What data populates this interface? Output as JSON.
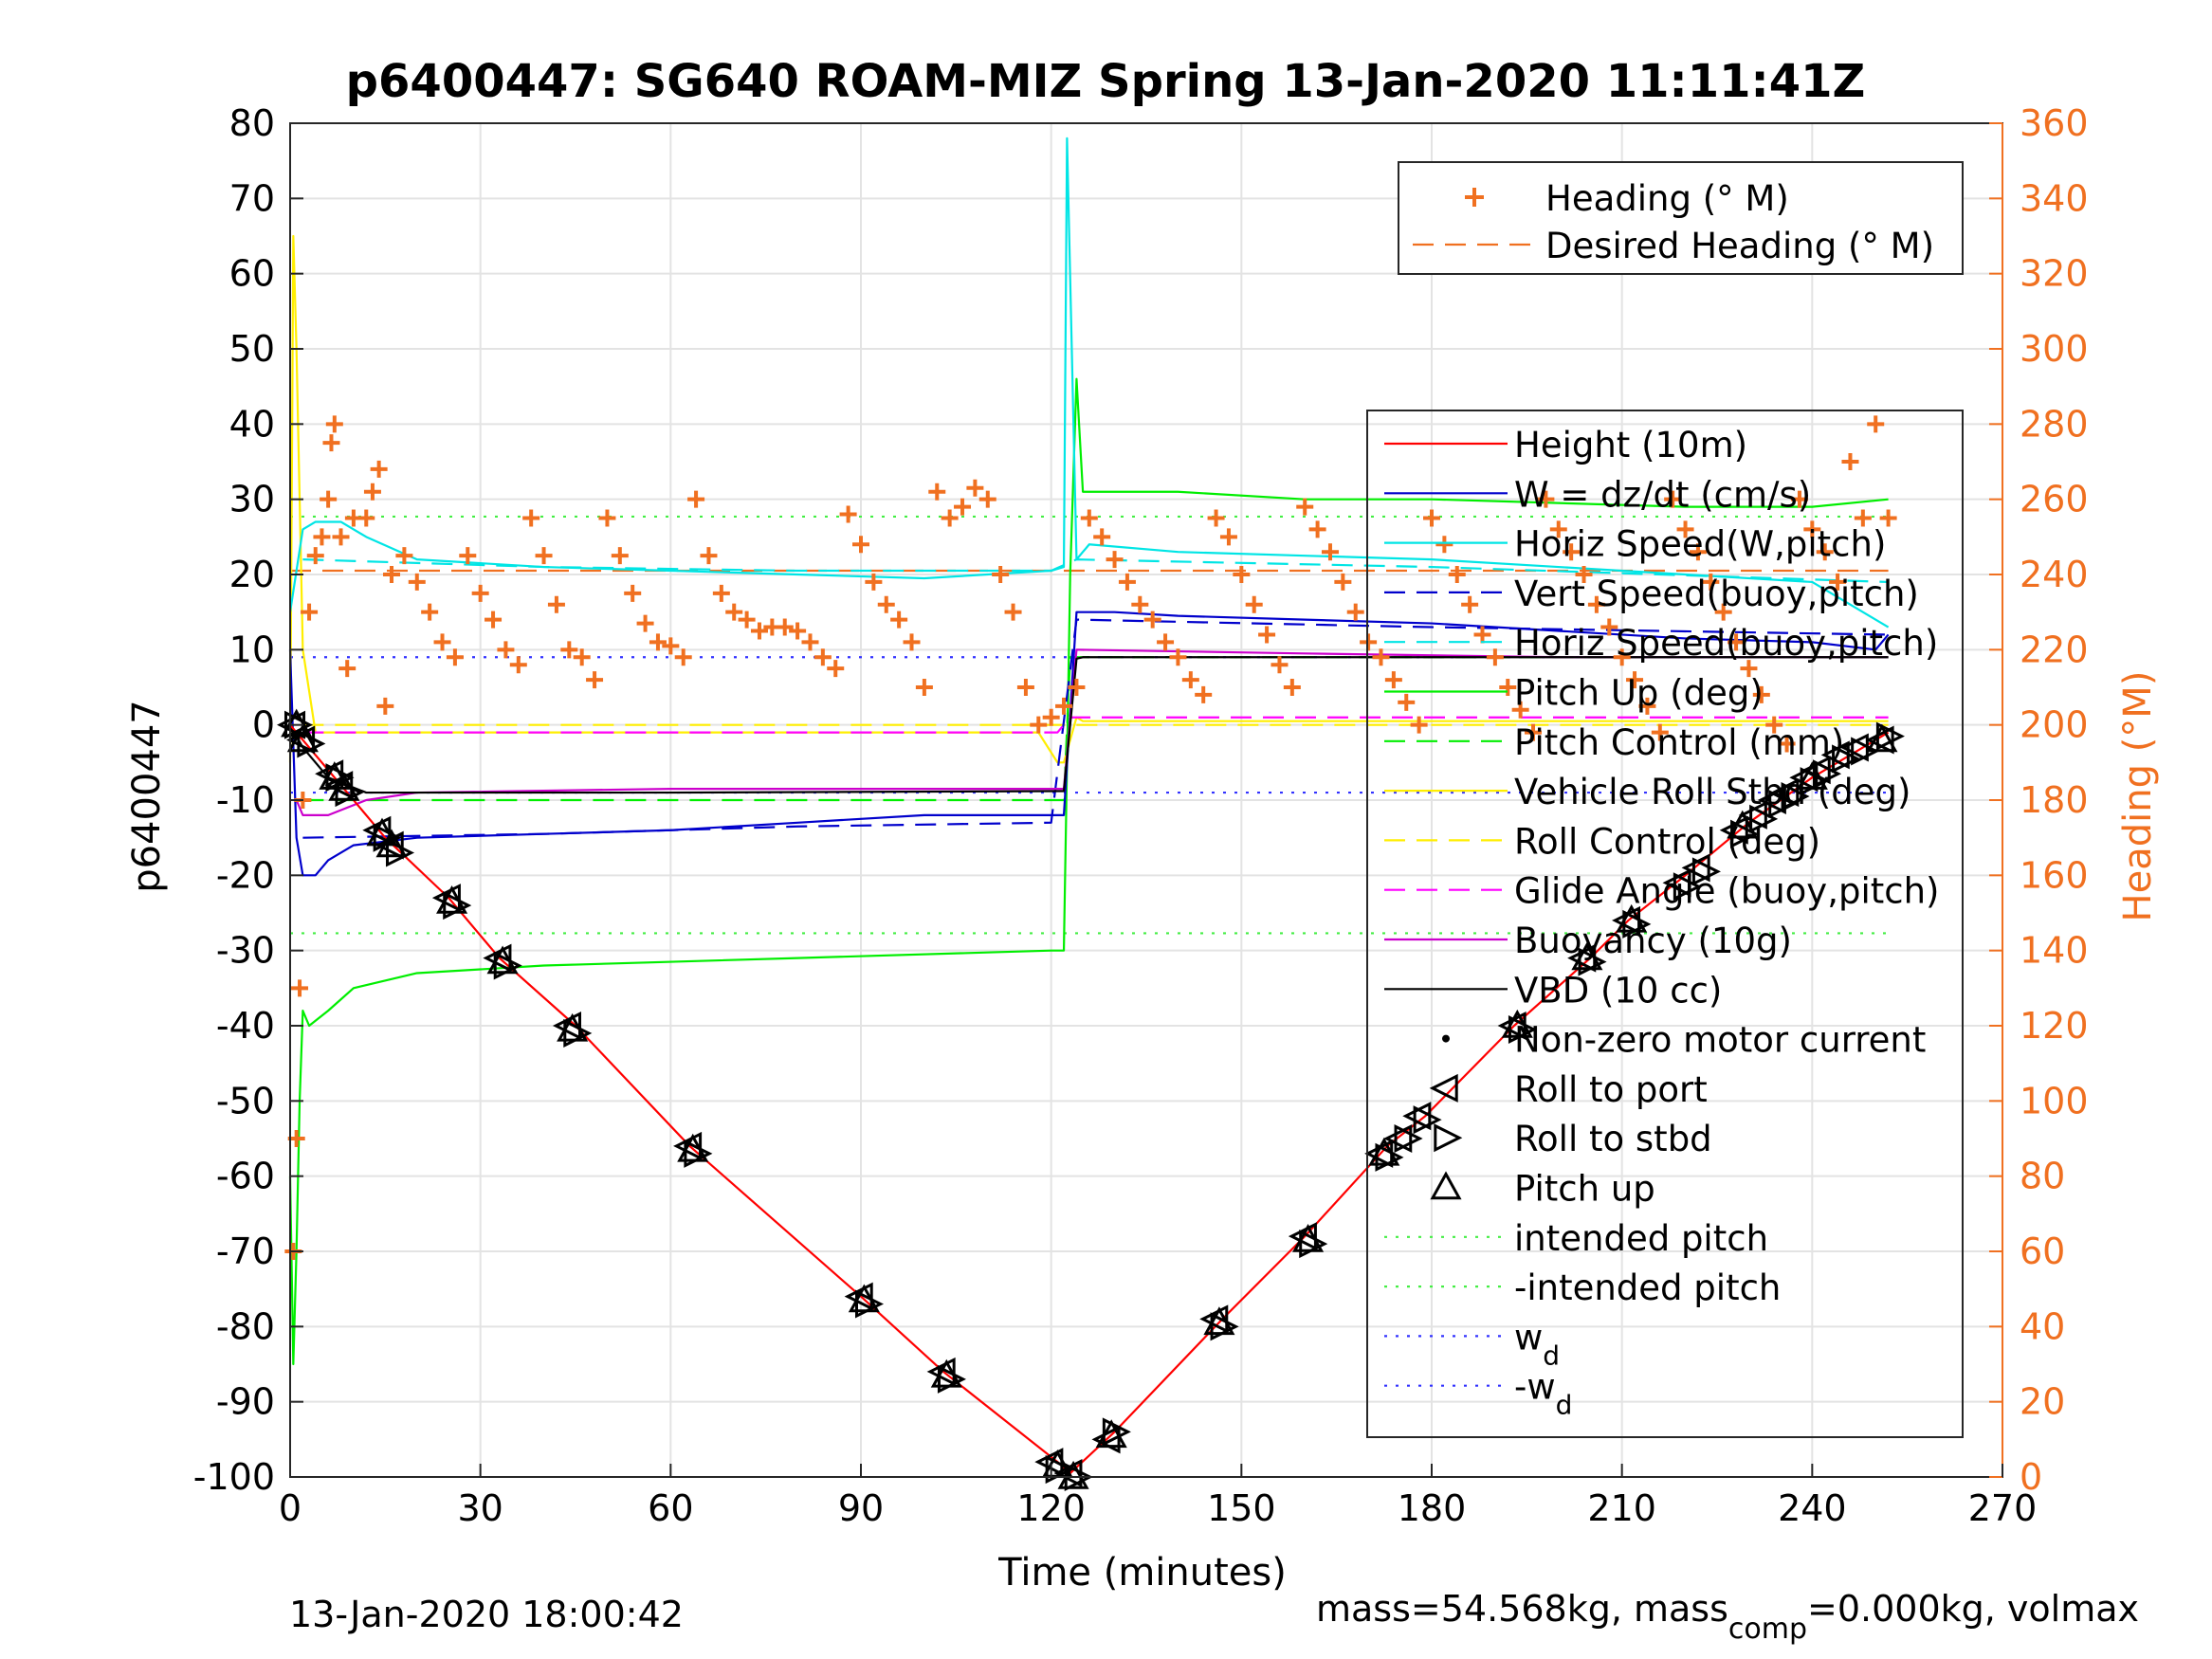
{
  "chart_data": {
    "type": "line",
    "title": "p6400447: SG640 ROAM-MIZ Spring 13-Jan-2020 11:11:41Z",
    "xlabel": "Time (minutes)",
    "ylabel": "p6400447",
    "ylabel_right": "Heading (°M)",
    "xlim": [
      0,
      270
    ],
    "ylim": [
      -100,
      80
    ],
    "ylim_right": [
      0,
      360
    ],
    "x_ticks": [
      0,
      30,
      60,
      90,
      120,
      150,
      180,
      210,
      240,
      270
    ],
    "y_ticks": [
      80,
      70,
      60,
      50,
      40,
      30,
      20,
      10,
      0,
      -10,
      -20,
      -30,
      -40,
      -50,
      -60,
      -70,
      -80,
      -90,
      -100
    ],
    "y_ticks_right": [
      360,
      340,
      320,
      300,
      280,
      260,
      240,
      220,
      200,
      180,
      160,
      140,
      120,
      100,
      80,
      60,
      40,
      20,
      0
    ],
    "grid": true,
    "footer_left": "13-Jan-2020 18:00:42",
    "footer_right": "mass=54.568kg, mass",
    "footer_right_sub": "comp",
    "footer_right_tail": "=0.000kg, volmax",
    "legend_top": [
      {
        "label": "Heading (° M)",
        "color": "#f07020",
        "style": "plus"
      },
      {
        "label": "Desired Heading (° M)",
        "color": "#f07020",
        "style": "dash"
      }
    ],
    "legend_main": [
      {
        "label": "Height (10m)",
        "color": "#ff0000",
        "style": "solid"
      },
      {
        "label": "W = dz/dt (cm/s)",
        "color": "#0000cc",
        "style": "solid"
      },
      {
        "label": "Horiz Speed(W,pitch)",
        "color": "#00e5e5",
        "style": "solid"
      },
      {
        "label": "Vert Speed(buoy,pitch)",
        "color": "#0000cc",
        "style": "dash"
      },
      {
        "label": "Horiz Speed(buoy,pitch)",
        "color": "#00e5e5",
        "style": "dash"
      },
      {
        "label": "Pitch Up (deg)",
        "color": "#00ee00",
        "style": "solid"
      },
      {
        "label": "Pitch Control (mm)",
        "color": "#00ee00",
        "style": "dash"
      },
      {
        "label": "Vehicle Roll Stbd (deg)",
        "color": "#ffee00",
        "style": "solid"
      },
      {
        "label": "Roll Control (deg)",
        "color": "#ffee00",
        "style": "dash"
      },
      {
        "label": "Glide Angle (buoy,pitch)",
        "color": "#ff00ff",
        "style": "dash"
      },
      {
        "label": "Buoyancy (10g)",
        "color": "#cc00cc",
        "style": "solid"
      },
      {
        "label": "VBD (10 cc)",
        "color": "#000000",
        "style": "solid"
      },
      {
        "label": "Non-zero motor current",
        "color": "#000000",
        "style": "dot"
      },
      {
        "label": "Roll to port",
        "color": "#000000",
        "style": "tri-left"
      },
      {
        "label": "Roll to stbd",
        "color": "#000000",
        "style": "tri-right"
      },
      {
        "label": "Pitch up",
        "color": "#000000",
        "style": "tri-up"
      },
      {
        "label": "intended pitch",
        "color": "#44ee44",
        "style": "dotted"
      },
      {
        "label": "-intended pitch",
        "color": "#44ee44",
        "style": "dotted"
      },
      {
        "label": "w",
        "sub": "d",
        "color": "#3333ff",
        "style": "dotted"
      },
      {
        "label": "-w",
        "sub": "d",
        "color": "#3333ff",
        "style": "dotted"
      }
    ],
    "series": [
      {
        "name": "Height (10m)",
        "color": "#ff0000",
        "x": [
          0,
          2,
          8,
          15,
          25,
          33,
          45,
          63,
          90,
          103,
          121,
          123,
          130,
          147,
          160,
          173,
          179,
          193,
          205,
          211,
          220,
          230,
          240,
          246,
          252
        ],
        "y": [
          0,
          -2,
          -8,
          -15,
          -23,
          -31,
          -40,
          -56,
          -76,
          -86,
          -98,
          -99.5,
          -94,
          -79,
          -68,
          -56,
          -52,
          -40,
          -31,
          -26,
          -20,
          -13,
          -7,
          -4,
          -1
        ]
      },
      {
        "name": "W = dz/dt (cm/s)",
        "color": "#0000cc",
        "x": [
          0,
          1,
          2,
          4,
          6,
          10,
          20,
          40,
          60,
          80,
          100,
          120,
          122,
          124,
          130,
          140,
          160,
          180,
          200,
          220,
          240,
          250,
          252
        ],
        "y": [
          10,
          -15,
          -20,
          -20,
          -18,
          -16,
          -15,
          -14.5,
          -14,
          -13,
          -12,
          -12,
          -12,
          15,
          15,
          14.5,
          14,
          13.5,
          12.5,
          11.5,
          11,
          10,
          12
        ]
      },
      {
        "name": "Horiz Speed(W,pitch)",
        "color": "#00e5e5",
        "x": [
          0,
          2,
          4,
          8,
          12,
          20,
          40,
          60,
          80,
          100,
          120,
          122,
          122.5,
          124,
          126,
          140,
          160,
          180,
          200,
          220,
          240,
          252
        ],
        "y": [
          15,
          26,
          27,
          27,
          25,
          22,
          21,
          20.5,
          20,
          19.5,
          20.5,
          21,
          78,
          22,
          24,
          23,
          22.5,
          22,
          21,
          20,
          19,
          13
        ]
      },
      {
        "name": "Vert Speed(buoy,pitch)",
        "color": "#0000cc",
        "x": [
          2,
          40,
          80,
          120,
          124,
          180,
          252
        ],
        "y": [
          -15,
          -14.5,
          -13.5,
          -13,
          14,
          13,
          12
        ]
      },
      {
        "name": "Horiz Speed(buoy,pitch)",
        "color": "#00e5e5",
        "x": [
          2,
          40,
          80,
          120,
          124,
          180,
          252
        ],
        "y": [
          22,
          21,
          20.5,
          20.5,
          22,
          21,
          19
        ]
      },
      {
        "name": "Pitch Up (deg)",
        "color": "#00ee00",
        "x": [
          0,
          0.5,
          1,
          1.5,
          2,
          3,
          6,
          10,
          20,
          40,
          80,
          120,
          122,
          122.5,
          123,
          124,
          125,
          140,
          160,
          180,
          200,
          220,
          240,
          252
        ],
        "y": [
          -60,
          -85,
          -70,
          -50,
          -38,
          -40,
          -38,
          -35,
          -33,
          -32,
          -31,
          -30,
          -30,
          -5,
          20,
          46,
          31,
          31,
          30,
          30,
          29.5,
          29,
          29,
          30
        ]
      },
      {
        "name": "Pitch Control (mm)",
        "color": "#00ee00",
        "x": [
          2,
          122,
          123,
          252
        ],
        "y": [
          -10,
          -10,
          9,
          9
        ]
      },
      {
        "name": "Vehicle Roll Stbd (deg)",
        "color": "#ffee00",
        "x": [
          0,
          0.5,
          1,
          2,
          4,
          10,
          25,
          50,
          80,
          100,
          118,
          121,
          122,
          124,
          125,
          150,
          180,
          200,
          230,
          252
        ],
        "y": [
          -5,
          65,
          50,
          10,
          -1,
          -1,
          -1,
          -1,
          -1,
          -1,
          -1,
          -5,
          -5,
          1,
          0.5,
          0.5,
          0.5,
          0.5,
          0.5,
          0.5
        ]
      },
      {
        "name": "Roll Control (deg)",
        "color": "#ffee00",
        "x": [
          2,
          122,
          124,
          252
        ],
        "y": [
          0,
          0,
          0,
          0
        ]
      },
      {
        "name": "Glide Angle (buoy,pitch)",
        "color": "#ff00ff",
        "x": [
          2,
          121,
          123,
          252
        ],
        "y": [
          -1,
          -1,
          1,
          1
        ]
      },
      {
        "name": "Buoyancy (10g)",
        "color": "#cc00cc",
        "x": [
          1,
          2,
          6,
          12,
          20,
          60,
          121,
          122,
          124,
          160,
          200,
          252
        ],
        "y": [
          -10,
          -12,
          -12,
          -10,
          -9,
          -8.5,
          -8.5,
          -8.5,
          10,
          9.5,
          9,
          9
        ]
      },
      {
        "name": "VBD (10 cc)",
        "color": "#000000",
        "x": [
          0,
          2,
          6,
          12,
          20,
          60,
          121,
          122,
          124,
          125,
          252
        ],
        "y": [
          0,
          -3,
          -7,
          -9,
          -9,
          -9,
          -8.8,
          -8.8,
          8.8,
          9,
          9
        ]
      },
      {
        "name": "Heading (° M)",
        "axis": "right",
        "color": "#f07020",
        "x": [
          0.5,
          1,
          1.5,
          2,
          3,
          4,
          5,
          6,
          6.5,
          7,
          8,
          9,
          10,
          12,
          13,
          14,
          15,
          16,
          18,
          20,
          22,
          24,
          26,
          28,
          30,
          32,
          34,
          36,
          38,
          40,
          42,
          44,
          46,
          48,
          50,
          52,
          54,
          56,
          58,
          60,
          62,
          64,
          66,
          68,
          70,
          72,
          74,
          76,
          78,
          80,
          82,
          84,
          86,
          88,
          90,
          92,
          94,
          96,
          98,
          100,
          102,
          104,
          106,
          108,
          110,
          112,
          114,
          116,
          118,
          120,
          122,
          124,
          126,
          128,
          130,
          132,
          134,
          136,
          138,
          140,
          142,
          144,
          146,
          148,
          150,
          152,
          154,
          156,
          158,
          160,
          162,
          164,
          166,
          168,
          170,
          172,
          174,
          176,
          178,
          180,
          182,
          184,
          186,
          188,
          190,
          192,
          194,
          196,
          198,
          200,
          202,
          204,
          206,
          208,
          210,
          212,
          214,
          216,
          218,
          220,
          222,
          224,
          226,
          228,
          230,
          232,
          234,
          236,
          238,
          240,
          242,
          244,
          246,
          248,
          250,
          252
        ],
        "y": [
          60,
          90,
          130,
          180,
          230,
          245,
          250,
          260,
          275,
          280,
          250,
          215,
          255,
          255,
          262,
          268,
          205,
          240,
          245,
          238,
          230,
          222,
          218,
          245,
          235,
          228,
          220,
          216,
          255,
          245,
          232,
          220,
          218,
          212,
          255,
          245,
          235,
          227,
          222,
          221,
          218,
          260,
          245,
          235,
          230,
          228,
          225,
          226,
          226,
          225,
          222,
          218,
          215,
          256,
          248,
          238,
          232,
          228,
          222,
          210,
          262,
          255,
          258,
          263,
          260,
          240,
          230,
          210,
          200,
          202,
          205,
          210,
          255,
          250,
          244,
          238,
          232,
          228,
          222,
          218,
          212,
          208,
          255,
          250,
          240,
          232,
          224,
          216,
          210,
          258,
          252,
          246,
          238,
          230,
          222,
          218,
          212,
          206,
          200,
          255,
          248,
          240,
          232,
          224,
          218,
          210,
          204,
          198,
          260,
          252,
          246,
          240,
          232,
          226,
          218,
          212,
          205,
          198,
          260,
          252,
          246,
          238,
          230,
          222,
          215,
          208,
          200,
          195,
          260,
          252,
          246,
          238,
          270,
          255,
          280,
          255
        ]
      },
      {
        "name": "Desired Heading (° M)",
        "axis": "right",
        "color": "#f07020",
        "x": [
          0,
          122,
          123,
          252
        ],
        "y": [
          241,
          241,
          241,
          241
        ]
      },
      {
        "name": "intended pitch",
        "color": "#44ee44",
        "x": [
          0,
          252
        ],
        "y": [
          27.7,
          27.7
        ]
      },
      {
        "name": "-intended pitch",
        "color": "#44ee44",
        "x": [
          0,
          252
        ],
        "y": [
          -27.7,
          -27.7
        ]
      },
      {
        "name": "wd",
        "color": "#3333ff",
        "x": [
          0,
          252
        ],
        "y": [
          9,
          9
        ]
      },
      {
        "name": "-wd",
        "color": "#3333ff",
        "x": [
          0,
          252
        ],
        "y": [
          -9,
          -9
        ]
      }
    ],
    "markers": {
      "roll_to_port": [
        [
          0.5,
          0
        ],
        [
          2,
          -2
        ],
        [
          6.5,
          -6.5
        ],
        [
          8,
          -8
        ],
        [
          14,
          -14
        ],
        [
          16,
          -16
        ],
        [
          25,
          -23
        ],
        [
          33,
          -31
        ],
        [
          44,
          -40
        ],
        [
          63,
          -56
        ],
        [
          90,
          -76
        ],
        [
          103,
          -86
        ],
        [
          120,
          -98
        ],
        [
          123,
          -99.5
        ],
        [
          129,
          -95
        ],
        [
          146,
          -79
        ],
        [
          160,
          -68
        ],
        [
          172,
          -57
        ],
        [
          175,
          -55
        ],
        [
          178,
          -52
        ],
        [
          193,
          -40
        ],
        [
          204,
          -31
        ],
        [
          211,
          -26
        ],
        [
          219,
          -21
        ],
        [
          222,
          -19
        ],
        [
          228,
          -14
        ],
        [
          231,
          -12
        ],
        [
          234,
          -10
        ],
        [
          236,
          -9
        ],
        [
          239,
          -7
        ],
        [
          241,
          -6
        ],
        [
          244,
          -4
        ],
        [
          247,
          -3
        ],
        [
          251,
          -2
        ]
      ],
      "roll_to_stbd": [
        [
          1,
          0
        ],
        [
          3,
          -2.5
        ],
        [
          7.5,
          -7
        ],
        [
          9,
          -9
        ],
        [
          15,
          -15
        ],
        [
          17,
          -17
        ],
        [
          26,
          -24
        ],
        [
          34,
          -32
        ],
        [
          45,
          -41
        ],
        [
          64,
          -57
        ],
        [
          91,
          -77
        ],
        [
          104,
          -87
        ],
        [
          121,
          -99
        ],
        [
          124,
          -100
        ],
        [
          130,
          -94
        ],
        [
          147,
          -80
        ],
        [
          161,
          -69
        ],
        [
          173,
          -57.5
        ],
        [
          176,
          -55
        ],
        [
          179,
          -52.5
        ],
        [
          194,
          -40.5
        ],
        [
          205,
          -31.5
        ],
        [
          212,
          -26.5
        ],
        [
          220,
          -21.5
        ],
        [
          223,
          -19.5
        ],
        [
          229,
          -14.5
        ],
        [
          232,
          -12.5
        ],
        [
          235,
          -10.5
        ],
        [
          237,
          -9.5
        ],
        [
          240,
          -7.5
        ],
        [
          242,
          -6.5
        ],
        [
          245,
          -4.5
        ],
        [
          248,
          -3.5
        ],
        [
          252,
          -1.5
        ]
      ],
      "pitch_up": [
        [
          1,
          0
        ],
        [
          2,
          -2
        ],
        [
          7,
          -7
        ],
        [
          8.5,
          -8.5
        ],
        [
          14.5,
          -14.5
        ],
        [
          16,
          -16
        ],
        [
          25.5,
          -23.5
        ],
        [
          33.5,
          -31.5
        ],
        [
          44.5,
          -40.5
        ],
        [
          63.5,
          -56.5
        ],
        [
          90.5,
          -76.5
        ],
        [
          103.5,
          -86.5
        ],
        [
          121,
          -98.5
        ],
        [
          123.5,
          -100
        ],
        [
          129.5,
          -94.5
        ],
        [
          146.5,
          -79.5
        ],
        [
          160.5,
          -68.5
        ],
        [
          172.5,
          -57
        ],
        [
          193.5,
          -40
        ],
        [
          204.5,
          -31
        ],
        [
          211.5,
          -26
        ],
        [
          229,
          -13.5
        ],
        [
          240,
          -7
        ],
        [
          251,
          -2
        ]
      ]
    }
  }
}
